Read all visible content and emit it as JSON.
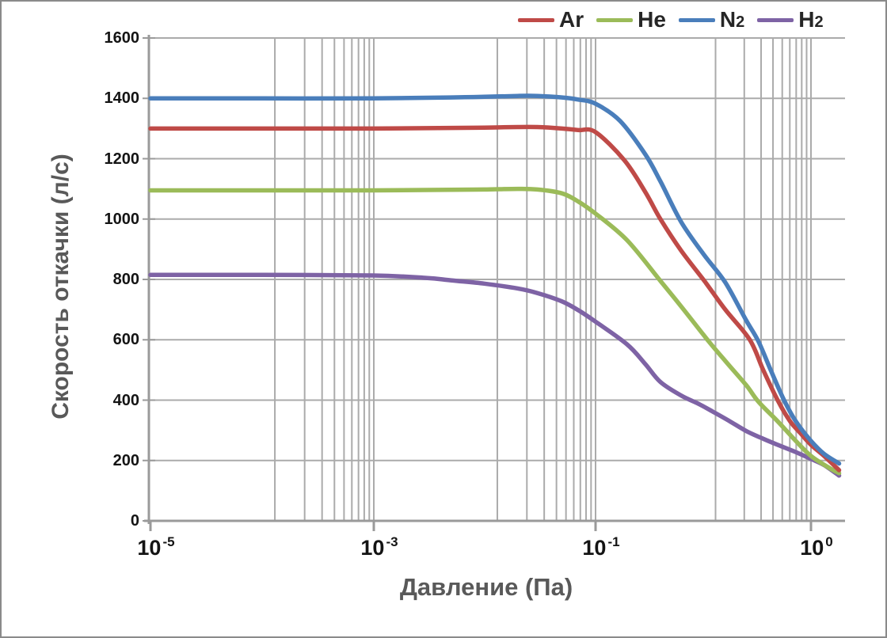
{
  "chart_data": {
    "type": "line",
    "title": "",
    "xlabel": "Давление (Па)",
    "ylabel": "Скорость откачки (л/с)",
    "x_scale": "log",
    "x_range": [
      1e-05,
      1.35
    ],
    "ylim": [
      0,
      1600
    ],
    "grid": true,
    "legend_position": "top-right",
    "x_ticks": [
      {
        "base": "10",
        "exp": "-5",
        "value": 1e-05
      },
      {
        "base": "10",
        "exp": "-3",
        "value": 0.001
      },
      {
        "base": "10",
        "exp": "-1",
        "value": 0.1
      },
      {
        "base": "10",
        "exp": "0",
        "value": 1
      }
    ],
    "y_ticks": [
      "0",
      "200",
      "400",
      "600",
      "800",
      "1000",
      "1200",
      "1400",
      "1600"
    ],
    "series": [
      {
        "label": "Ar",
        "sub": "",
        "color": "#bf4a47",
        "points": [
          [
            1e-05,
            1300
          ],
          [
            0.0001,
            1300
          ],
          [
            0.001,
            1300
          ],
          [
            0.005,
            1302
          ],
          [
            0.01,
            1303
          ],
          [
            0.02,
            1305
          ],
          [
            0.03,
            1305
          ],
          [
            0.05,
            1300
          ],
          [
            0.07,
            1295
          ],
          [
            0.1,
            1288
          ],
          [
            0.136,
            1195
          ],
          [
            0.17,
            1090
          ],
          [
            0.2,
            1000
          ],
          [
            0.25,
            895
          ],
          [
            0.32,
            795
          ],
          [
            0.4,
            700
          ],
          [
            0.52,
            600
          ],
          [
            0.6,
            500
          ],
          [
            0.7,
            400
          ],
          [
            0.8,
            330
          ],
          [
            0.9,
            288
          ],
          [
            1.0,
            252
          ],
          [
            1.15,
            215
          ],
          [
            1.35,
            168
          ]
        ]
      },
      {
        "label": "He",
        "sub": "",
        "color": "#9bbb59",
        "points": [
          [
            1e-05,
            1095
          ],
          [
            0.0001,
            1095
          ],
          [
            0.001,
            1095
          ],
          [
            0.005,
            1097
          ],
          [
            0.01,
            1098
          ],
          [
            0.02,
            1100
          ],
          [
            0.03,
            1098
          ],
          [
            0.05,
            1085
          ],
          [
            0.07,
            1058
          ],
          [
            0.1,
            1018
          ],
          [
            0.14,
            930
          ],
          [
            0.2,
            795
          ],
          [
            0.25,
            710
          ],
          [
            0.335,
            595
          ],
          [
            0.4,
            530
          ],
          [
            0.5,
            450
          ],
          [
            0.57,
            395
          ],
          [
            0.7,
            330
          ],
          [
            0.85,
            265
          ],
          [
            1.0,
            215
          ],
          [
            1.2,
            178
          ],
          [
            1.35,
            158
          ]
        ]
      },
      {
        "label": "N",
        "sub": "2",
        "color": "#4a7ebb",
        "points": [
          [
            1e-05,
            1400
          ],
          [
            0.0001,
            1400
          ],
          [
            0.001,
            1400
          ],
          [
            0.005,
            1403
          ],
          [
            0.01,
            1405
          ],
          [
            0.02,
            1408
          ],
          [
            0.03,
            1408
          ],
          [
            0.05,
            1403
          ],
          [
            0.07,
            1396
          ],
          [
            0.1,
            1382
          ],
          [
            0.13,
            1325
          ],
          [
            0.17,
            1215
          ],
          [
            0.2,
            1125
          ],
          [
            0.25,
            990
          ],
          [
            0.32,
            880
          ],
          [
            0.4,
            790
          ],
          [
            0.5,
            665
          ],
          [
            0.57,
            595
          ],
          [
            0.65,
            500
          ],
          [
            0.75,
            400
          ],
          [
            0.85,
            330
          ],
          [
            1.0,
            265
          ],
          [
            1.15,
            222
          ],
          [
            1.35,
            190
          ]
        ]
      },
      {
        "label": "H",
        "sub": "2",
        "color": "#7e63a5",
        "points": [
          [
            1e-05,
            815
          ],
          [
            0.0001,
            815
          ],
          [
            0.001,
            813
          ],
          [
            0.003,
            805
          ],
          [
            0.005,
            797
          ],
          [
            0.01,
            786
          ],
          [
            0.02,
            770
          ],
          [
            0.03,
            755
          ],
          [
            0.05,
            727
          ],
          [
            0.07,
            698
          ],
          [
            0.1,
            660
          ],
          [
            0.14,
            585
          ],
          [
            0.17,
            520
          ],
          [
            0.2,
            460
          ],
          [
            0.25,
            415
          ],
          [
            0.3,
            388
          ],
          [
            0.35,
            362
          ],
          [
            0.42,
            330
          ],
          [
            0.5,
            298
          ],
          [
            0.6,
            272
          ],
          [
            0.7,
            252
          ],
          [
            0.85,
            228
          ],
          [
            1.0,
            205
          ],
          [
            1.15,
            185
          ],
          [
            1.35,
            150
          ]
        ]
      }
    ],
    "colors": {
      "grid": "#ababab",
      "axis": "#9a9a9a",
      "axis_title": "#595959",
      "tick_label": "#141414"
    }
  }
}
